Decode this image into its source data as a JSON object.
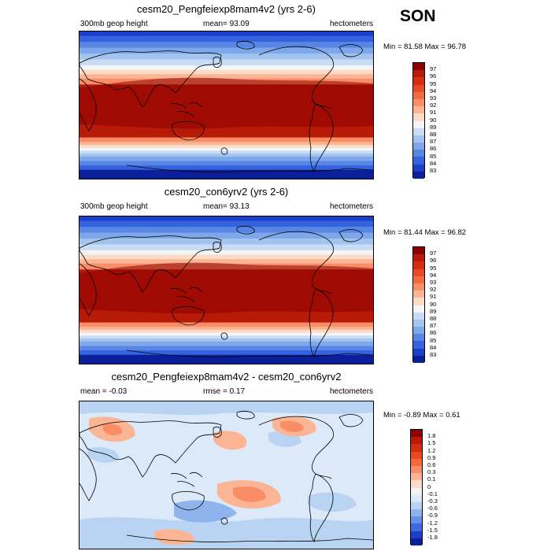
{
  "season": "SON",
  "panels": [
    {
      "title": "cesm20_Pengfeiexp8mam4v2 (yrs 2-6)",
      "left_label": "300mb geop height",
      "center_label": "mean=  93.09",
      "right_label": "hectometers",
      "minmax": "Min =  81.58 Max =  96.78",
      "type": "full",
      "colorbar": {
        "labels": [
          "97",
          "96",
          "95",
          "94",
          "93",
          "92",
          "91",
          "90",
          "89",
          "88",
          "87",
          "86",
          "85",
          "84",
          "83"
        ],
        "colors": [
          "#8b0000",
          "#b81a08",
          "#d52d10",
          "#e84a24",
          "#f36a3f",
          "#f98e66",
          "#fbb594",
          "#fcdcc6",
          "#f5f5f5",
          "#c8ddf5",
          "#a3c4ef",
          "#7ea8ea",
          "#5886e5",
          "#3562df",
          "#1c3fc8",
          "#0a1f99"
        ]
      }
    },
    {
      "title": "cesm20_con6yrv2 (yrs 2-6)",
      "left_label": "300mb geop height",
      "center_label": "mean=  93.13",
      "right_label": "hectometers",
      "minmax": "Min =  81.44 Max =  96.82",
      "type": "full",
      "colorbar": {
        "labels": [
          "97",
          "96",
          "95",
          "94",
          "93",
          "92",
          "91",
          "90",
          "89",
          "88",
          "87",
          "86",
          "85",
          "84",
          "83"
        ],
        "colors": [
          "#8b0000",
          "#b81a08",
          "#d52d10",
          "#e84a24",
          "#f36a3f",
          "#f98e66",
          "#fbb594",
          "#fcdcc6",
          "#f5f5f5",
          "#c8ddf5",
          "#a3c4ef",
          "#7ea8ea",
          "#5886e5",
          "#3562df",
          "#1c3fc8",
          "#0a1f99"
        ]
      }
    },
    {
      "title": "cesm20_Pengfeiexp8mam4v2 - cesm20_con6yrv2",
      "left_label": "mean =  -0.03",
      "center_label": "rmse =   0.17",
      "right_label": "hectometers",
      "minmax": "Min =  -0.89 Max =   0.61",
      "type": "diff",
      "colorbar": {
        "labels": [
          "1.8",
          "1.5",
          "1.2",
          "0.9",
          "0.6",
          "0.3",
          "0.1",
          "0",
          "-0.1",
          "-0.3",
          "-0.6",
          "-0.9",
          "-1.2",
          "-1.5",
          "-1.8"
        ],
        "colors": [
          "#8b0000",
          "#b81a08",
          "#d52d10",
          "#e84a24",
          "#f36a3f",
          "#f98e66",
          "#fbb594",
          "#fcdcc6",
          "#f2f2f2",
          "#dce9f8",
          "#b9d3f2",
          "#8fb3ec",
          "#6791e6",
          "#3d6ae0",
          "#1c3fc8",
          "#0a1f99"
        ]
      }
    }
  ]
}
